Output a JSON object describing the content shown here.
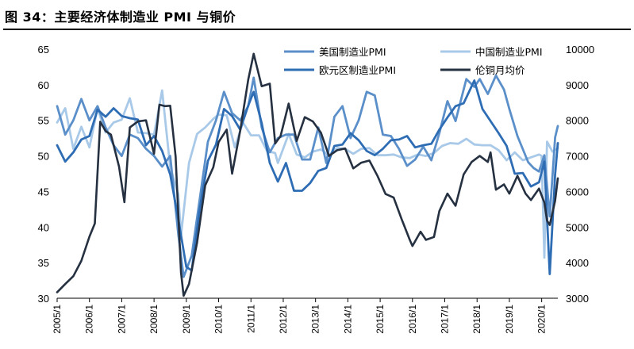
{
  "figure": {
    "title": "图 34：主要经济体制造业 PMI 与铜价"
  },
  "chart_data": {
    "type": "line",
    "grid": false,
    "legend_position": "top-right",
    "xlim": [
      "2005/1",
      "2020/7"
    ],
    "x_tick_labels": [
      "2005/1",
      "2006/1",
      "2007/1",
      "2008/1",
      "2009/1",
      "2010/1",
      "2011/1",
      "2012/1",
      "2013/1",
      "2014/1",
      "2015/1",
      "2016/1",
      "2017/1",
      "2018/1",
      "2019/1",
      "2020/1"
    ],
    "y_left": {
      "min": 30,
      "max": 65,
      "ticks": [
        30,
        35,
        40,
        45,
        50,
        55,
        60,
        65
      ]
    },
    "y_right": {
      "min": 3000,
      "max": 10000,
      "ticks": [
        3000,
        4000,
        5000,
        6000,
        7000,
        8000,
        9000,
        10000
      ]
    },
    "series": [
      {
        "name": "美国制造业PMI",
        "axis": "left",
        "color": "#5b8fc9",
        "points": [
          [
            "2005/1",
            57
          ],
          [
            "2005/4",
            53
          ],
          [
            "2005/7",
            55
          ],
          [
            "2005/10",
            58
          ],
          [
            "2006/1",
            55
          ],
          [
            "2006/4",
            57
          ],
          [
            "2006/7",
            54
          ],
          [
            "2006/10",
            51.5
          ],
          [
            "2007/1",
            50
          ],
          [
            "2007/4",
            53
          ],
          [
            "2007/7",
            52.5
          ],
          [
            "2007/10",
            51
          ],
          [
            "2008/1",
            50
          ],
          [
            "2008/4",
            48.5
          ],
          [
            "2008/7",
            50
          ],
          [
            "2008/10",
            39
          ],
          [
            "2008/12",
            33
          ],
          [
            "2009/3",
            36
          ],
          [
            "2009/6",
            44
          ],
          [
            "2009/9",
            52
          ],
          [
            "2009/12",
            55
          ],
          [
            "2010/3",
            59
          ],
          [
            "2010/6",
            56
          ],
          [
            "2010/9",
            55
          ],
          [
            "2010/12",
            57
          ],
          [
            "2011/2",
            61
          ],
          [
            "2011/5",
            54
          ],
          [
            "2011/8",
            50.5
          ],
          [
            "2011/11",
            52.5
          ],
          [
            "2012/2",
            53
          ],
          [
            "2012/5",
            53
          ],
          [
            "2012/8",
            49.5
          ],
          [
            "2012/11",
            49.5
          ],
          [
            "2013/2",
            54
          ],
          [
            "2013/5",
            49
          ],
          [
            "2013/8",
            55.5
          ],
          [
            "2013/11",
            57
          ],
          [
            "2014/2",
            52.5
          ],
          [
            "2014/5",
            55
          ],
          [
            "2014/8",
            59
          ],
          [
            "2014/11",
            58.5
          ],
          [
            "2015/2",
            53
          ],
          [
            "2015/5",
            52.8
          ],
          [
            "2015/8",
            51
          ],
          [
            "2015/11",
            48.6
          ],
          [
            "2016/2",
            49.5
          ],
          [
            "2016/5",
            51.3
          ],
          [
            "2016/8",
            49.4
          ],
          [
            "2016/11",
            53.2
          ],
          [
            "2017/2",
            57.7
          ],
          [
            "2017/5",
            54.9
          ],
          [
            "2017/9",
            60.8
          ],
          [
            "2017/12",
            59.7
          ],
          [
            "2018/2",
            60.8
          ],
          [
            "2018/5",
            58.7
          ],
          [
            "2018/8",
            61.3
          ],
          [
            "2018/11",
            59.3
          ],
          [
            "2019/1",
            56.6
          ],
          [
            "2019/4",
            52.8
          ],
          [
            "2019/8",
            49.1
          ],
          [
            "2019/10",
            48.3
          ],
          [
            "2019/12",
            47.8
          ],
          [
            "2020/2",
            50.1
          ],
          [
            "2020/4",
            41.5
          ],
          [
            "2020/6",
            52.6
          ],
          [
            "2020/7",
            54.2
          ]
        ]
      },
      {
        "name": "中国制造业PMI",
        "axis": "left",
        "color": "#a9c9e8",
        "points": [
          [
            "2005/1",
            54.7
          ],
          [
            "2005/4",
            56.7
          ],
          [
            "2005/7",
            51
          ],
          [
            "2005/10",
            54.1
          ],
          [
            "2006/1",
            51.2
          ],
          [
            "2006/4",
            56.7
          ],
          [
            "2006/7",
            53.3
          ],
          [
            "2006/10",
            54.7
          ],
          [
            "2007/1",
            55.1
          ],
          [
            "2007/4",
            58.1
          ],
          [
            "2007/7",
            53.3
          ],
          [
            "2007/10",
            53.2
          ],
          [
            "2008/1",
            53
          ],
          [
            "2008/4",
            59.2
          ],
          [
            "2008/7",
            48.4
          ],
          [
            "2008/10",
            44.6
          ],
          [
            "2008/11",
            38.8
          ],
          [
            "2009/2",
            49
          ],
          [
            "2009/5",
            53.1
          ],
          [
            "2009/8",
            54
          ],
          [
            "2009/11",
            55.2
          ],
          [
            "2010/1",
            55.8
          ],
          [
            "2010/4",
            55.7
          ],
          [
            "2010/7",
            51.2
          ],
          [
            "2010/10",
            54.7
          ],
          [
            "2011/1",
            52.9
          ],
          [
            "2011/4",
            52.9
          ],
          [
            "2011/7",
            50.7
          ],
          [
            "2011/10",
            50.4
          ],
          [
            "2011/11",
            49
          ],
          [
            "2012/3",
            53.1
          ],
          [
            "2012/6",
            50.2
          ],
          [
            "2012/9",
            49.8
          ],
          [
            "2012/12",
            50.6
          ],
          [
            "2013/3",
            50.9
          ],
          [
            "2013/6",
            50.1
          ],
          [
            "2013/9",
            51.1
          ],
          [
            "2013/12",
            51
          ],
          [
            "2014/3",
            50.3
          ],
          [
            "2014/6",
            51
          ],
          [
            "2014/9",
            51.1
          ],
          [
            "2014/12",
            50.1
          ],
          [
            "2015/3",
            50.1
          ],
          [
            "2015/6",
            50.2
          ],
          [
            "2015/9",
            49.8
          ],
          [
            "2015/12",
            49.7
          ],
          [
            "2016/3",
            50.2
          ],
          [
            "2016/6",
            50
          ],
          [
            "2016/9",
            50.4
          ],
          [
            "2016/12",
            51.4
          ],
          [
            "2017/3",
            51.8
          ],
          [
            "2017/6",
            51.7
          ],
          [
            "2017/9",
            52.4
          ],
          [
            "2017/12",
            51.6
          ],
          [
            "2018/3",
            51.5
          ],
          [
            "2018/6",
            51.5
          ],
          [
            "2018/9",
            50.8
          ],
          [
            "2018/12",
            49.4
          ],
          [
            "2019/3",
            50.5
          ],
          [
            "2019/6",
            49.4
          ],
          [
            "2019/9",
            49.8
          ],
          [
            "2019/12",
            50.2
          ],
          [
            "2020/1",
            50
          ],
          [
            "2020/2",
            35.7
          ],
          [
            "2020/3",
            52
          ],
          [
            "2020/5",
            50.6
          ],
          [
            "2020/7",
            51.1
          ]
        ]
      },
      {
        "name": "欧元区制造业PMI",
        "axis": "left",
        "color": "#2e6db4",
        "points": [
          [
            "2005/1",
            51.5
          ],
          [
            "2005/4",
            49.2
          ],
          [
            "2005/7",
            50.5
          ],
          [
            "2005/10",
            52.3
          ],
          [
            "2006/1",
            52.8
          ],
          [
            "2006/4",
            56.5
          ],
          [
            "2006/7",
            55.5
          ],
          [
            "2006/10",
            56.7
          ],
          [
            "2007/1",
            55.6
          ],
          [
            "2007/4",
            55.3
          ],
          [
            "2007/7",
            55.1
          ],
          [
            "2007/10",
            51.5
          ],
          [
            "2008/1",
            52.8
          ],
          [
            "2008/4",
            50.7
          ],
          [
            "2008/7",
            47.4
          ],
          [
            "2008/10",
            41.1
          ],
          [
            "2009/1",
            34.4
          ],
          [
            "2009/3",
            33.9
          ],
          [
            "2009/6",
            42.6
          ],
          [
            "2009/9",
            49.3
          ],
          [
            "2009/12",
            51.6
          ],
          [
            "2010/3",
            56.6
          ],
          [
            "2010/6",
            55.6
          ],
          [
            "2010/9",
            53.7
          ],
          [
            "2010/12",
            57.1
          ],
          [
            "2011/2",
            59
          ],
          [
            "2011/5",
            54.6
          ],
          [
            "2011/8",
            49
          ],
          [
            "2011/11",
            46.4
          ],
          [
            "2012/2",
            49
          ],
          [
            "2012/5",
            45.1
          ],
          [
            "2012/8",
            45.1
          ],
          [
            "2012/11",
            46.2
          ],
          [
            "2013/2",
            47.9
          ],
          [
            "2013/5",
            48.3
          ],
          [
            "2013/8",
            51.4
          ],
          [
            "2013/11",
            51.6
          ],
          [
            "2014/2",
            53.2
          ],
          [
            "2014/5",
            52.2
          ],
          [
            "2014/8",
            50.7
          ],
          [
            "2014/11",
            50.1
          ],
          [
            "2015/2",
            51
          ],
          [
            "2015/5",
            52.2
          ],
          [
            "2015/8",
            52.3
          ],
          [
            "2015/11",
            52.8
          ],
          [
            "2016/2",
            51.2
          ],
          [
            "2016/5",
            51.5
          ],
          [
            "2016/8",
            51.7
          ],
          [
            "2016/11",
            53.7
          ],
          [
            "2017/2",
            55.4
          ],
          [
            "2017/5",
            57
          ],
          [
            "2017/8",
            57.4
          ],
          [
            "2017/12",
            60.6
          ],
          [
            "2018/3",
            56.6
          ],
          [
            "2018/6",
            54.9
          ],
          [
            "2018/9",
            53.2
          ],
          [
            "2018/12",
            51.4
          ],
          [
            "2019/3",
            47.5
          ],
          [
            "2019/6",
            47.6
          ],
          [
            "2019/9",
            45.7
          ],
          [
            "2019/12",
            46.3
          ],
          [
            "2020/2",
            49.2
          ],
          [
            "2020/4",
            33.4
          ],
          [
            "2020/6",
            47.4
          ],
          [
            "2020/7",
            51.8
          ]
        ]
      },
      {
        "name": "伦铜月均价",
        "axis": "right",
        "color": "#253041",
        "points": [
          [
            "2005/1",
            3170
          ],
          [
            "2005/4",
            3400
          ],
          [
            "2005/7",
            3620
          ],
          [
            "2005/10",
            4050
          ],
          [
            "2006/1",
            4730
          ],
          [
            "2006/3",
            5100
          ],
          [
            "2006/5",
            7960
          ],
          [
            "2006/7",
            7700
          ],
          [
            "2006/9",
            7600
          ],
          [
            "2006/12",
            6700
          ],
          [
            "2007/2",
            5700
          ],
          [
            "2007/4",
            7800
          ],
          [
            "2007/7",
            7970
          ],
          [
            "2007/10",
            8000
          ],
          [
            "2008/1",
            7060
          ],
          [
            "2008/3",
            8440
          ],
          [
            "2008/5",
            8400
          ],
          [
            "2008/7",
            8410
          ],
          [
            "2008/9",
            6990
          ],
          [
            "2008/11",
            3730
          ],
          [
            "2008/12",
            3070
          ],
          [
            "2009/2",
            3400
          ],
          [
            "2009/5",
            4570
          ],
          [
            "2009/8",
            6170
          ],
          [
            "2009/11",
            6680
          ],
          [
            "2010/1",
            7390
          ],
          [
            "2010/4",
            7740
          ],
          [
            "2010/6",
            6500
          ],
          [
            "2010/9",
            7710
          ],
          [
            "2010/12",
            9150
          ],
          [
            "2011/2",
            9870
          ],
          [
            "2011/5",
            8960
          ],
          [
            "2011/8",
            9030
          ],
          [
            "2011/10",
            7350
          ],
          [
            "2011/12",
            7560
          ],
          [
            "2012/3",
            8470
          ],
          [
            "2012/6",
            7420
          ],
          [
            "2012/9",
            8090
          ],
          [
            "2012/12",
            7970
          ],
          [
            "2013/3",
            7650
          ],
          [
            "2013/6",
            7000
          ],
          [
            "2013/9",
            7160
          ],
          [
            "2013/12",
            7210
          ],
          [
            "2014/3",
            6650
          ],
          [
            "2014/6",
            6810
          ],
          [
            "2014/9",
            6870
          ],
          [
            "2014/12",
            6440
          ],
          [
            "2015/3",
            5930
          ],
          [
            "2015/6",
            5830
          ],
          [
            "2015/9",
            5220
          ],
          [
            "2015/12",
            4640
          ],
          [
            "2016/1",
            4470
          ],
          [
            "2016/4",
            4870
          ],
          [
            "2016/6",
            4640
          ],
          [
            "2016/9",
            4720
          ],
          [
            "2016/11",
            5450
          ],
          [
            "2017/2",
            5940
          ],
          [
            "2017/5",
            5600
          ],
          [
            "2017/8",
            6480
          ],
          [
            "2017/11",
            6830
          ],
          [
            "2018/2",
            7000
          ],
          [
            "2018/5",
            6830
          ],
          [
            "2018/6",
            7100
          ],
          [
            "2018/8",
            6050
          ],
          [
            "2018/11",
            6200
          ],
          [
            "2019/1",
            5940
          ],
          [
            "2019/4",
            6440
          ],
          [
            "2019/7",
            5940
          ],
          [
            "2019/9",
            5760
          ],
          [
            "2019/12",
            6080
          ],
          [
            "2020/2",
            5690
          ],
          [
            "2020/3",
            5180
          ],
          [
            "2020/4",
            5060
          ],
          [
            "2020/6",
            5740
          ],
          [
            "2020/7",
            6370
          ]
        ]
      }
    ]
  }
}
